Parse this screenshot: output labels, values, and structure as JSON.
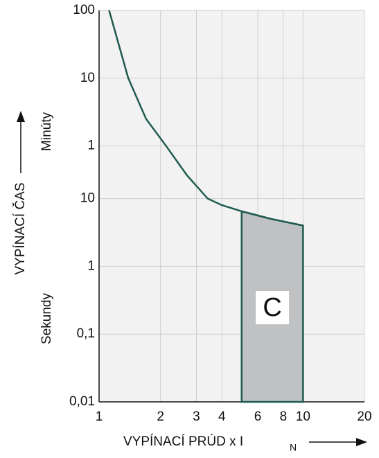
{
  "chart_data": {
    "type": "line",
    "y_label": "VYPÍNACÍ ČAS",
    "y_label_minutes": "Minúty",
    "y_label_seconds": "Sekundy",
    "x_label": "VYPÍNACÍ PRÚD  x I",
    "x_label_sub": "N",
    "annotation": "C",
    "log_x": true,
    "log_y": true,
    "grid": true,
    "xlim": [
      1,
      20
    ],
    "xticks": [
      1,
      2,
      3,
      4,
      6,
      8,
      10,
      20
    ],
    "ylim": [
      0.01,
      6000
    ],
    "yticks": [
      {
        "value": 6000,
        "label": "100"
      },
      {
        "value": 600,
        "label": "10"
      },
      {
        "value": 60,
        "label": "1"
      },
      {
        "value": 10,
        "label": "10"
      },
      1,
      {
        "value": 0.1,
        "label": "0,1"
      },
      {
        "value": 0.01,
        "label": "0,01"
      }
    ],
    "series": [
      {
        "color": "#1f5a4f",
        "x": [
          1.12,
          1.39,
          1.7,
          2.13,
          2.7,
          3.41,
          4,
          5,
          7,
          10
        ],
        "values": [
          6000,
          600,
          150,
          60,
          22,
          10,
          8,
          6.5,
          5,
          4
        ]
      }
    ],
    "band": {
      "color": "#c0c1c3",
      "x": [
        5,
        7,
        10
      ],
      "upper": [
        6.5,
        5,
        4
      ],
      "lower": [
        0.01,
        0.01,
        0.01
      ]
    }
  }
}
